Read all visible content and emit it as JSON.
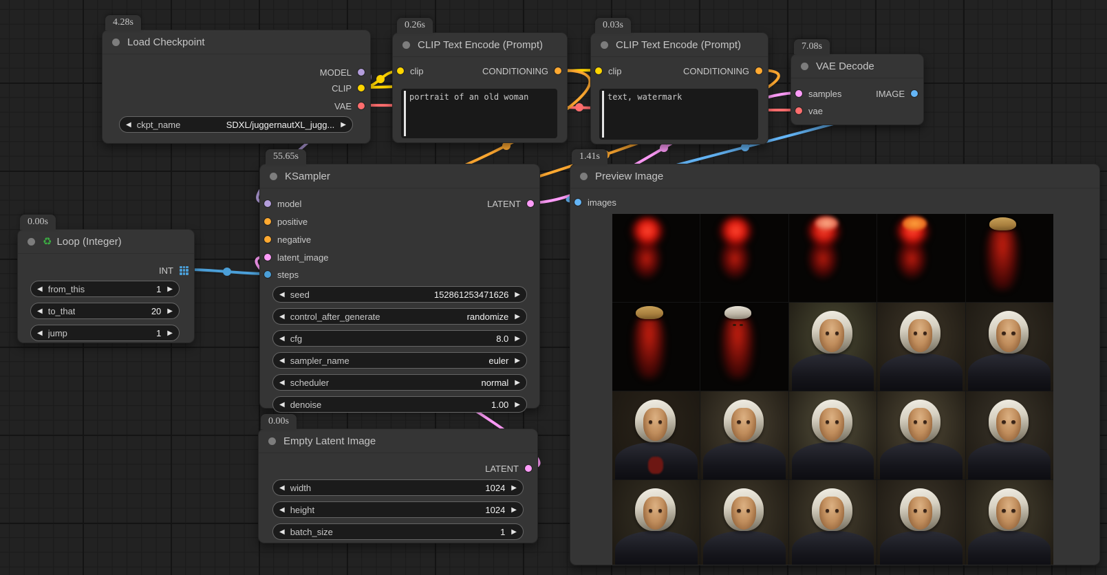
{
  "palette": {
    "model": "#b39ddb",
    "clip": "#ffd500",
    "vae": "#ff6e6e",
    "conditioning": "#ffa931",
    "latent": "#ff9cf9",
    "image": "#64b5f6",
    "int": "#4b9fd8",
    "node_bg": "#353535",
    "badge_bg": "#323232",
    "badge_text": "#c8c8c8"
  },
  "nodes": {
    "load_checkpoint": {
      "badge": "4.28s",
      "title": "Load Checkpoint",
      "outputs": [
        "MODEL",
        "CLIP",
        "VAE"
      ],
      "widgets": [
        {
          "name": "ckpt_name",
          "value": "SDXL/juggernautXL_jugg..."
        }
      ]
    },
    "clip_positive": {
      "badge": "0.26s",
      "title": "CLIP Text Encode (Prompt)",
      "input": "clip",
      "output": "CONDITIONING",
      "text": "portrait of an old woman"
    },
    "clip_negative": {
      "badge": "0.03s",
      "title": "CLIP Text Encode (Prompt)",
      "input": "clip",
      "output": "CONDITIONING",
      "text": "text, watermark"
    },
    "vae_decode": {
      "badge": "7.08s",
      "title": "VAE Decode",
      "inputs": [
        "samples",
        "vae"
      ],
      "output": "IMAGE"
    },
    "ksampler": {
      "badge": "55.65s",
      "title": "KSampler",
      "inputs": [
        "model",
        "positive",
        "negative",
        "latent_image",
        "steps"
      ],
      "output": "LATENT",
      "widgets": [
        {
          "name": "seed",
          "value": "152861253471626"
        },
        {
          "name": "control_after_generate",
          "value": "randomize"
        },
        {
          "name": "cfg",
          "value": "8.0"
        },
        {
          "name": "sampler_name",
          "value": "euler"
        },
        {
          "name": "scheduler",
          "value": "normal"
        },
        {
          "name": "denoise",
          "value": "1.00"
        }
      ]
    },
    "loop_integer": {
      "badge": "0.00s",
      "title": "Loop (Integer)",
      "title_icon": "♻",
      "output": "INT",
      "widgets": [
        {
          "name": "from_this",
          "value": "1"
        },
        {
          "name": "to_that",
          "value": "20"
        },
        {
          "name": "jump",
          "value": "1"
        }
      ]
    },
    "empty_latent": {
      "badge": "0.00s",
      "title": "Empty Latent Image",
      "output": "LATENT",
      "widgets": [
        {
          "name": "width",
          "value": "1024"
        },
        {
          "name": "height",
          "value": "1024"
        },
        {
          "name": "batch_size",
          "value": "1"
        }
      ]
    },
    "preview_image": {
      "badge": "1.41s",
      "title": "Preview Image",
      "input": "images",
      "cells": [
        {
          "type": "blob"
        },
        {
          "type": "blob"
        },
        {
          "type": "blob-soft"
        },
        {
          "type": "blob-crown"
        },
        {
          "type": "blob-bonnet"
        },
        {
          "type": "emerge-bonnet"
        },
        {
          "type": "emerge-face"
        },
        {
          "type": "portrait",
          "bg": "#4b4a33"
        },
        {
          "type": "portrait",
          "bg": "#3e3628"
        },
        {
          "type": "portrait",
          "bg": "#332d23"
        },
        {
          "type": "portrait",
          "bg": "#2a2319",
          "accent": true
        },
        {
          "type": "portrait",
          "bg": "#4a4232"
        },
        {
          "type": "portrait",
          "bg": "#55503b"
        },
        {
          "type": "portrait",
          "bg": "#514936"
        },
        {
          "type": "portrait",
          "bg": "#3b352a"
        },
        {
          "type": "portrait",
          "bg": "#353023"
        },
        {
          "type": "portrait",
          "bg": "#413a2b"
        },
        {
          "type": "portrait",
          "bg": "#484130"
        },
        {
          "type": "portrait",
          "bg": "#3c3529"
        },
        {
          "type": "portrait",
          "bg": "#46402f"
        }
      ]
    }
  }
}
